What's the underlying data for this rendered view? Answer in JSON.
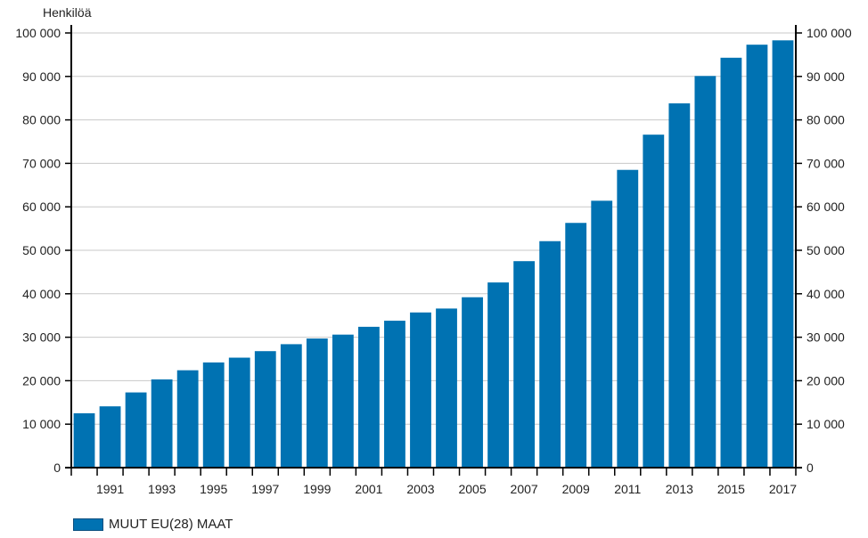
{
  "chart_data": {
    "type": "bar",
    "y_axis_title": "Henkilöä",
    "ylim": [
      0,
      100000
    ],
    "y_ticks": [
      0,
      10000,
      20000,
      30000,
      40000,
      50000,
      60000,
      70000,
      80000,
      90000,
      100000
    ],
    "y_tick_labels": [
      "0",
      "10 000",
      "20 000",
      "30 000",
      "40 000",
      "50 000",
      "60 000",
      "70 000",
      "80 000",
      "90 000",
      "100 000"
    ],
    "categories": [
      "1990",
      "1991",
      "1992",
      "1993",
      "1994",
      "1995",
      "1996",
      "1997",
      "1998",
      "1999",
      "2000",
      "2001",
      "2002",
      "2003",
      "2004",
      "2005",
      "2006",
      "2007",
      "2008",
      "2009",
      "2010",
      "2011",
      "2012",
      "2013",
      "2014",
      "2015",
      "2016",
      "2017"
    ],
    "x_tick_labels": [
      "",
      "1991",
      "",
      "1993",
      "",
      "1995",
      "",
      "1997",
      "",
      "1999",
      "",
      "2001",
      "",
      "2003",
      "",
      "2005",
      "",
      "2007",
      "",
      "2009",
      "",
      "2011",
      "",
      "2013",
      "",
      "2015",
      "",
      "2017"
    ],
    "series": [
      {
        "name": "MUUT EU(28) MAAT",
        "color": "#0072b2",
        "values": [
          12500,
          14100,
          17300,
          20300,
          22400,
          24200,
          25300,
          26800,
          28400,
          29700,
          30600,
          32400,
          33800,
          35700,
          36600,
          39200,
          42600,
          47500,
          52100,
          56300,
          61400,
          68500,
          76600,
          83800,
          90100,
          94300,
          97300,
          98300
        ]
      }
    ],
    "grid": true,
    "legend_position": "bottom-left"
  },
  "legend": {
    "label": "MUUT EU(28) MAAT",
    "color": "#0072b2"
  }
}
